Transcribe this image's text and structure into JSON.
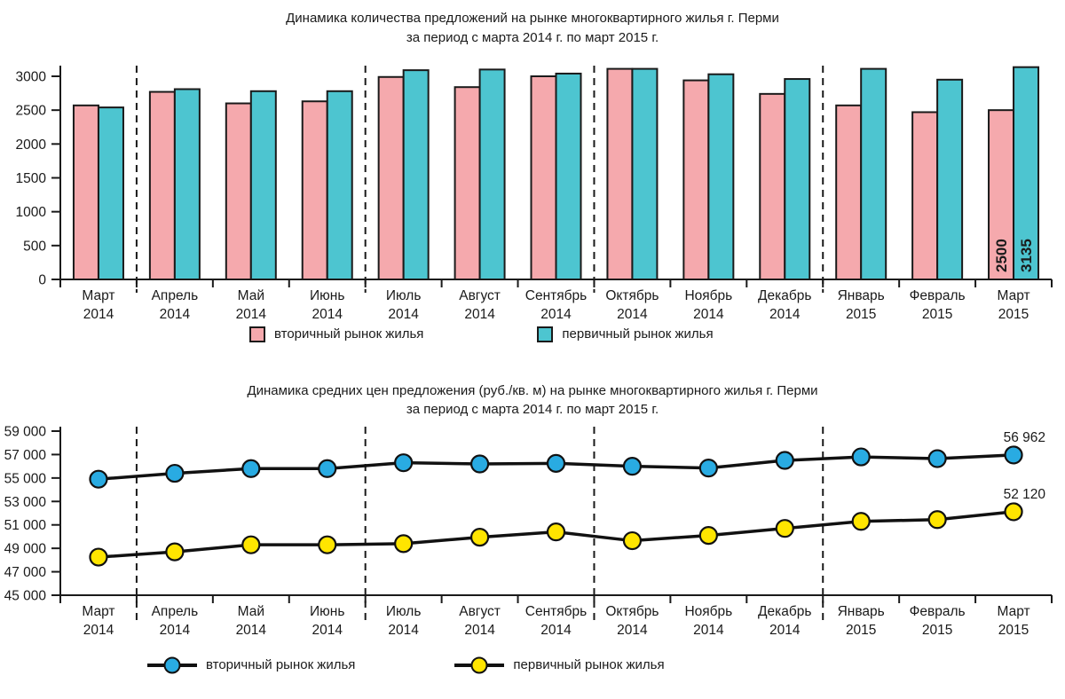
{
  "background": "#FFFFFF",
  "axis_color": "#1A1A1A",
  "chart_data": [
    {
      "type": "bar",
      "title": "Динамика количества предложений на рынке многоквартирного жилья г. Перми",
      "subtitle": "за период с марта 2014 г. по март 2015 г.",
      "ylim": [
        0,
        3000
      ],
      "yticks": {
        "labels": [
          "0",
          "500",
          "1000",
          "1500",
          "2000",
          "2500",
          "3000"
        ],
        "values": [
          0,
          500,
          1000,
          1500,
          2000,
          2500,
          3000
        ]
      },
      "categories": [
        {
          "month": "Март",
          "year": "2014"
        },
        {
          "month": "Апрель",
          "year": "2014"
        },
        {
          "month": "Май",
          "year": "2014"
        },
        {
          "month": "Июнь",
          "year": "2014"
        },
        {
          "month": "Июль",
          "year": "2014"
        },
        {
          "month": "Август",
          "year": "2014"
        },
        {
          "month": "Сентябрь",
          "year": "2014"
        },
        {
          "month": "Октябрь",
          "year": "2014"
        },
        {
          "month": "Ноябрь",
          "year": "2014"
        },
        {
          "month": "Декабрь",
          "year": "2014"
        },
        {
          "month": "Январь",
          "year": "2015"
        },
        {
          "month": "Февраль",
          "year": "2015"
        },
        {
          "month": "Март",
          "year": "2015"
        }
      ],
      "separators_after": [
        0,
        3,
        6,
        9
      ],
      "series": [
        {
          "name": "вторичный рынок жилья",
          "color": "#F5A9AD",
          "values": [
            2570,
            2770,
            2600,
            2630,
            2990,
            2840,
            3000,
            3110,
            2940,
            2740,
            2570,
            2470,
            2500
          ]
        },
        {
          "name": "первичный рынок жилья",
          "color": "#4DC5D0",
          "values": [
            2540,
            2810,
            2780,
            2780,
            3090,
            3100,
            3040,
            3110,
            3030,
            2960,
            3110,
            2950,
            3135
          ]
        }
      ],
      "bar_labels": {
        "category_index": 12,
        "labels": [
          "2500",
          "3135"
        ]
      },
      "legend_position": "bottom"
    },
    {
      "type": "line",
      "title": "Динамика средних цен предложения (руб./кв. м) на рынке многоквартирного жилья г. Перми",
      "subtitle": "за период с марта 2014 г. по март 2015 г.",
      "ylim": [
        45000,
        59000
      ],
      "yticks": {
        "labels": [
          "45 000",
          "47 000",
          "49 000",
          "51 000",
          "53 000",
          "55 000",
          "57 000",
          "59 000"
        ],
        "values": [
          45000,
          47000,
          49000,
          51000,
          53000,
          55000,
          57000,
          59000
        ]
      },
      "categories": [
        {
          "month": "Март",
          "year": "2014"
        },
        {
          "month": "Апрель",
          "year": "2014"
        },
        {
          "month": "Май",
          "year": "2014"
        },
        {
          "month": "Июнь",
          "year": "2014"
        },
        {
          "month": "Июль",
          "year": "2014"
        },
        {
          "month": "Август",
          "year": "2014"
        },
        {
          "month": "Сентябрь",
          "year": "2014"
        },
        {
          "month": "Октябрь",
          "year": "2014"
        },
        {
          "month": "Ноябрь",
          "year": "2014"
        },
        {
          "month": "Декабрь",
          "year": "2014"
        },
        {
          "month": "Январь",
          "year": "2015"
        },
        {
          "month": "Февраль",
          "year": "2015"
        },
        {
          "month": "Март",
          "year": "2015"
        }
      ],
      "separators_after": [
        0,
        3,
        6,
        9
      ],
      "series": [
        {
          "name": "вторичный рынок жилья",
          "color": "#29ABE2",
          "values": [
            54900,
            55400,
            55800,
            55800,
            56300,
            56200,
            56250,
            56000,
            55850,
            56500,
            56800,
            56650,
            56962
          ]
        },
        {
          "name": "первичный рынок жилья",
          "color": "#FFE500",
          "values": [
            48250,
            48700,
            49300,
            49300,
            49400,
            49950,
            50400,
            49650,
            50100,
            50700,
            51300,
            51450,
            52120
          ]
        }
      ],
      "end_labels": [
        "56 962",
        "52 120"
      ],
      "legend_position": "bottom"
    }
  ]
}
